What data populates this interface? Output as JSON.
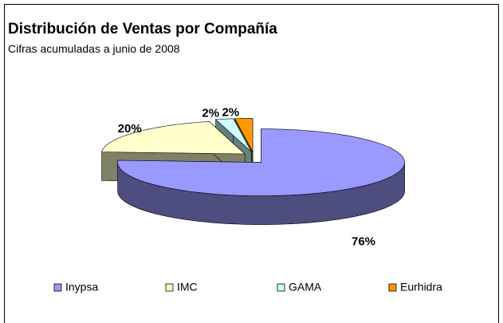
{
  "chart_data": {
    "type": "pie3d",
    "title": "Distribución de Ventas por Compañía",
    "subtitle": "Cifras acumuladas a junio de 2008",
    "series": [
      {
        "name": "Inypsa",
        "color": "#9999ff",
        "values": [
          76
        ],
        "value_labels": [
          "76%"
        ]
      },
      {
        "name": "IMC",
        "color": "#ffffcc",
        "values": [
          20
        ],
        "value_labels": [
          "20%"
        ]
      },
      {
        "name": "GAMA",
        "color": "#ccffff",
        "values": [
          2
        ],
        "value_labels": [
          "2%"
        ]
      },
      {
        "name": "Eurhidra",
        "color": "#ff9900",
        "values": [
          2
        ],
        "value_labels": [
          "2%"
        ]
      }
    ],
    "legend": "bottom"
  }
}
